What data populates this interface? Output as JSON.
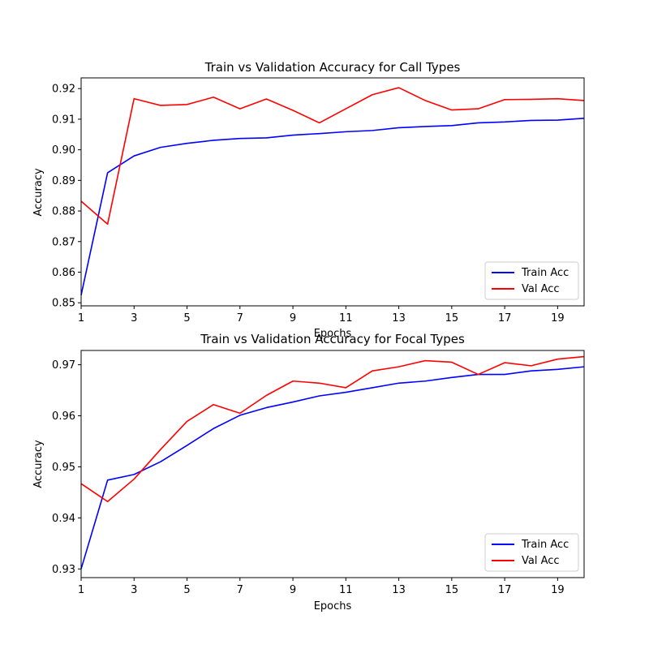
{
  "chart_data": [
    {
      "type": "line",
      "title": "Train vs Validation Accuracy for Call Types",
      "xlabel": "Epochs",
      "ylabel": "Accuracy",
      "xlim": [
        1,
        20
      ],
      "ylim": [
        0.849,
        0.9235
      ],
      "xticks": [
        "1",
        "3",
        "5",
        "7",
        "9",
        "11",
        "13",
        "15",
        "17",
        "19"
      ],
      "yticks": [
        "0.85",
        "0.86",
        "0.87",
        "0.88",
        "0.89",
        "0.90",
        "0.91",
        "0.92"
      ],
      "grid": false,
      "legend_position": "lower-right",
      "x": [
        1,
        2,
        3,
        4,
        5,
        6,
        7,
        8,
        9,
        10,
        11,
        12,
        13,
        14,
        15,
        16,
        17,
        18,
        19,
        20
      ],
      "series": [
        {
          "name": "Train Acc",
          "color": "#0000ff",
          "values": [
            0.8525,
            0.8925,
            0.898,
            0.9008,
            0.9021,
            0.9031,
            0.9037,
            0.9039,
            0.9048,
            0.9053,
            0.9059,
            0.9063,
            0.9072,
            0.9076,
            0.9079,
            0.9088,
            0.9091,
            0.9096,
            0.9097,
            0.9103
          ]
        },
        {
          "name": "Val Acc",
          "color": "#ff0000",
          "values": [
            0.8832,
            0.8757,
            0.9167,
            0.9145,
            0.9148,
            0.9172,
            0.9134,
            0.9166,
            0.9129,
            0.9088,
            0.9134,
            0.918,
            0.9203,
            0.9161,
            0.913,
            0.9134,
            0.9164,
            0.9165,
            0.9167,
            0.9161
          ]
        }
      ]
    },
    {
      "type": "line",
      "title": "Train vs Validation Accuracy for Focal Types",
      "xlabel": "Epochs",
      "ylabel": "Accuracy",
      "xlim": [
        1,
        20
      ],
      "ylim": [
        0.9283,
        0.9728
      ],
      "xticks": [
        "1",
        "3",
        "5",
        "7",
        "9",
        "11",
        "13",
        "15",
        "17",
        "19"
      ],
      "yticks": [
        "0.93",
        "0.94",
        "0.95",
        "0.96",
        "0.97"
      ],
      "grid": false,
      "legend_position": "lower-right",
      "x": [
        1,
        2,
        3,
        4,
        5,
        6,
        7,
        8,
        9,
        10,
        11,
        12,
        13,
        14,
        15,
        16,
        17,
        18,
        19,
        20
      ],
      "series": [
        {
          "name": "Train Acc",
          "color": "#0000ff",
          "values": [
            0.93,
            0.9474,
            0.9485,
            0.951,
            0.9542,
            0.9575,
            0.9601,
            0.9616,
            0.9627,
            0.9639,
            0.9646,
            0.9655,
            0.9664,
            0.9668,
            0.9675,
            0.9681,
            0.9681,
            0.9688,
            0.9691,
            0.9696
          ]
        },
        {
          "name": "Val Acc",
          "color": "#ff0000",
          "values": [
            0.9467,
            0.9432,
            0.9476,
            0.9534,
            0.9589,
            0.9622,
            0.9605,
            0.964,
            0.9668,
            0.9664,
            0.9655,
            0.9688,
            0.9696,
            0.9708,
            0.9705,
            0.9681,
            0.9704,
            0.9698,
            0.9711,
            0.9716
          ]
        }
      ]
    }
  ]
}
